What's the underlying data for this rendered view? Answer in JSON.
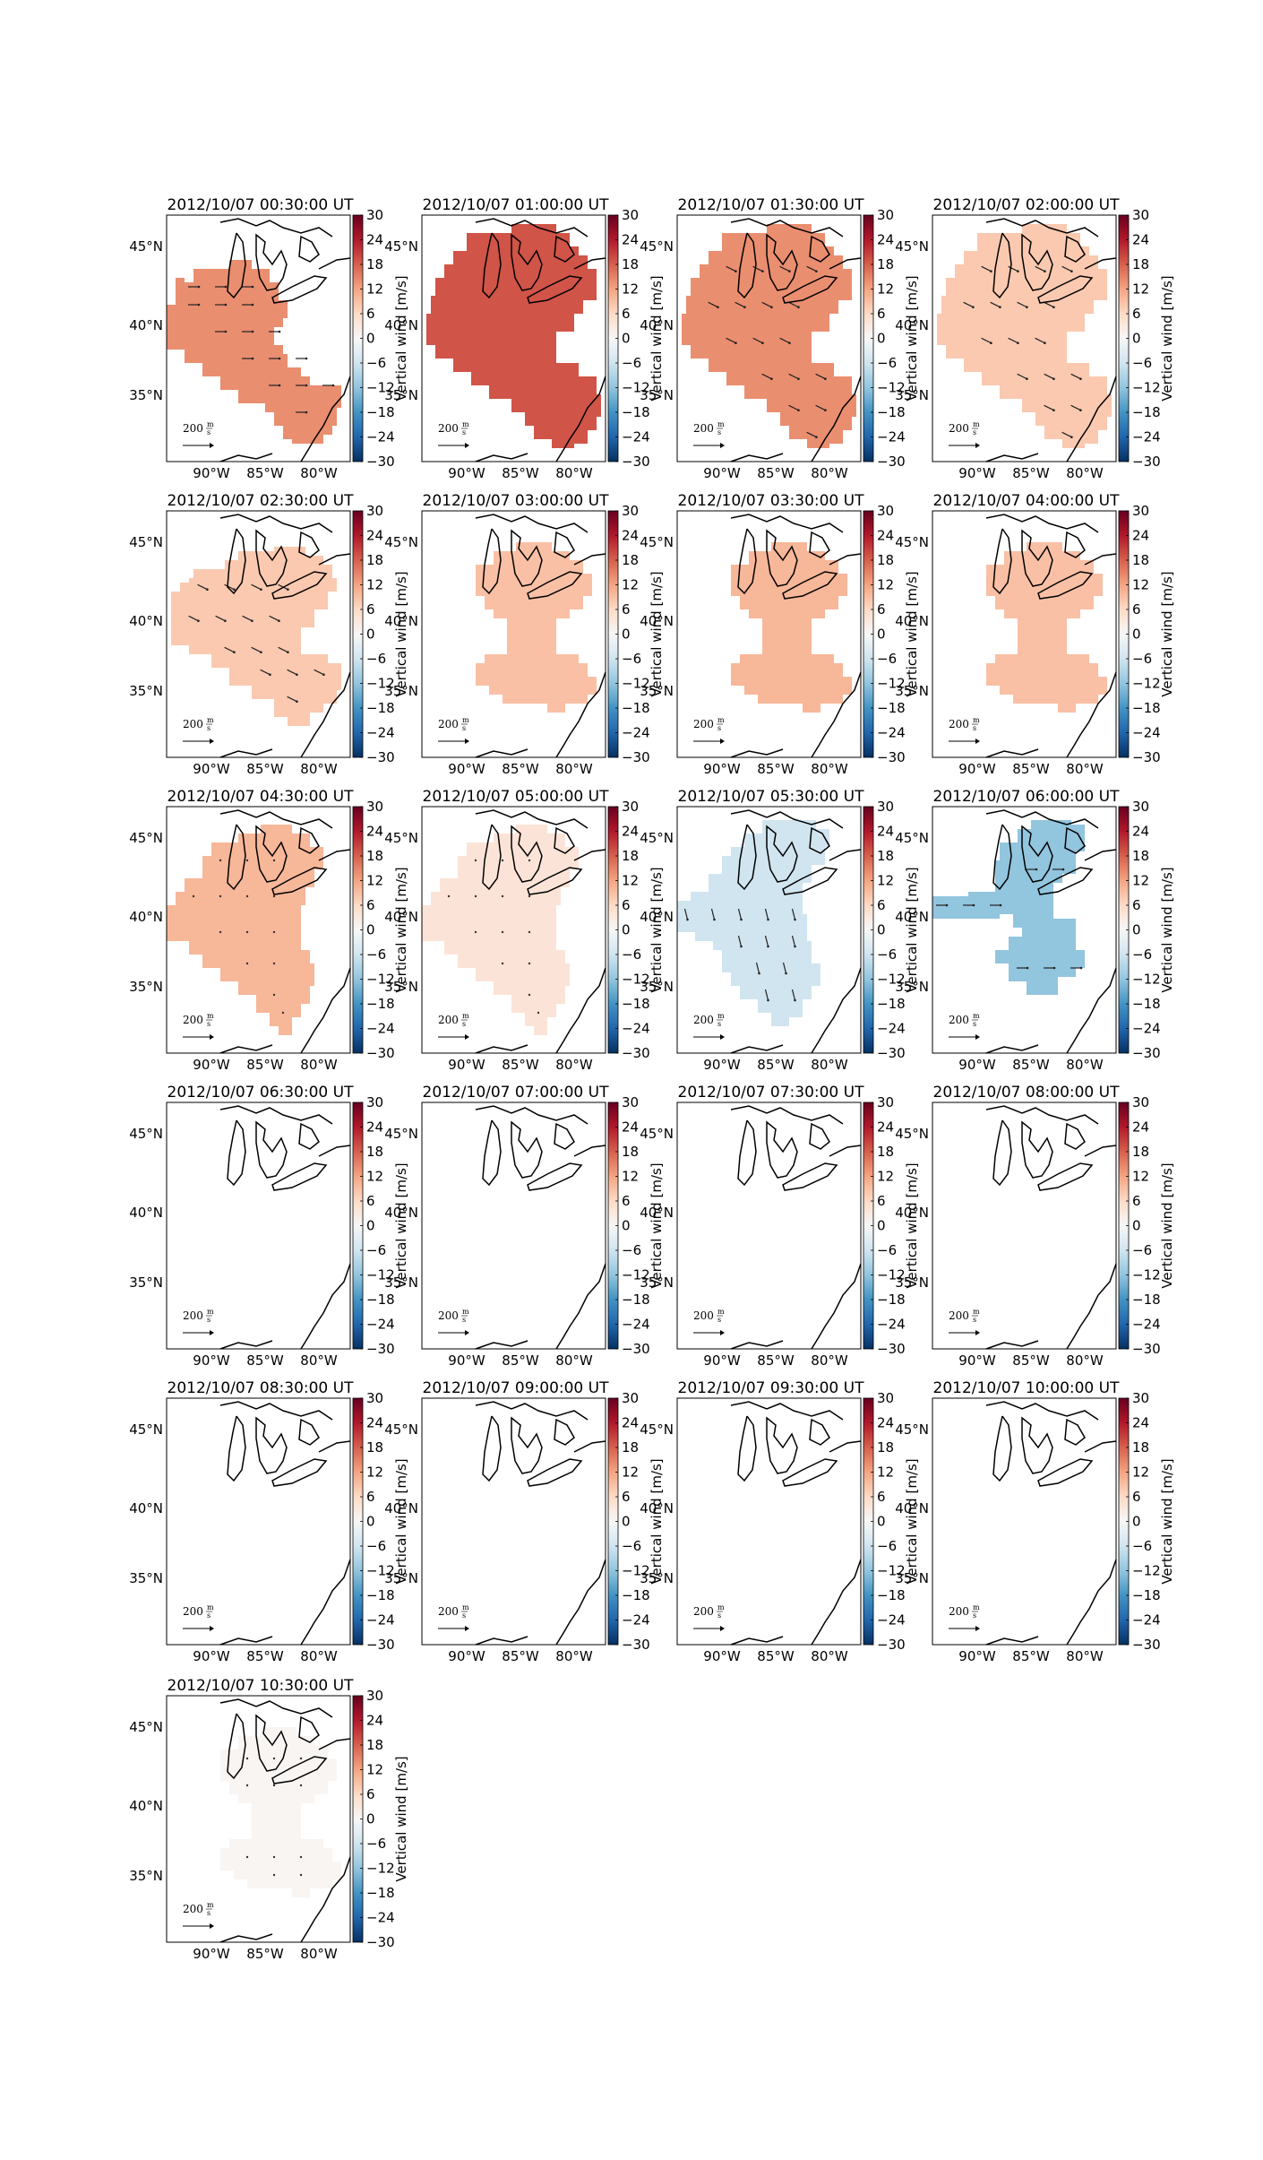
{
  "figure": {
    "colorbar": {
      "label": "Vertical wind [m/s]",
      "ticks": [
        "30",
        "24",
        "18",
        "12",
        "6",
        "0",
        "−6",
        "−12",
        "−18",
        "−24",
        "−30"
      ],
      "vmin": -30,
      "vmax": 30,
      "colormap": [
        "#67001f",
        "#b2182b",
        "#d6604d",
        "#f4a582",
        "#fddbc7",
        "#f7f7f7",
        "#d1e5f0",
        "#92c5de",
        "#4393c3",
        "#2166ac",
        "#053061"
      ]
    },
    "map": {
      "lat_labels": [
        "45°N",
        "40°N",
        "35°N"
      ],
      "lon_labels": [
        "90°W",
        "85°W",
        "80°W"
      ],
      "reference_arrow": {
        "value": "200",
        "unit_num": "m",
        "unit_den": "s"
      }
    }
  },
  "chart_data": [
    {
      "type": "heatmap",
      "title": "2012/10/07 00:30:00 UT",
      "region": "A",
      "vertical_wind_ms": 14,
      "arrows": "east"
    },
    {
      "type": "heatmap",
      "title": "2012/10/07 01:00:00 UT",
      "region": "B",
      "vertical_wind_ms": 19,
      "arrows": "none"
    },
    {
      "type": "heatmap",
      "title": "2012/10/07 01:30:00 UT",
      "region": "B",
      "vertical_wind_ms": 14,
      "arrows": "southeast"
    },
    {
      "type": "heatmap",
      "title": "2012/10/07 02:00:00 UT",
      "region": "B",
      "vertical_wind_ms": 8,
      "arrows": "southeast"
    },
    {
      "type": "heatmap",
      "title": "2012/10/07 02:30:00 UT",
      "region": "C",
      "vertical_wind_ms": 8,
      "arrows": "southeast"
    },
    {
      "type": "heatmap",
      "title": "2012/10/07 03:00:00 UT",
      "region": "D",
      "vertical_wind_ms": 9,
      "arrows": "none"
    },
    {
      "type": "heatmap",
      "title": "2012/10/07 03:30:00 UT",
      "region": "D",
      "vertical_wind_ms": 10,
      "arrows": "none"
    },
    {
      "type": "heatmap",
      "title": "2012/10/07 04:00:00 UT",
      "region": "D",
      "vertical_wind_ms": 9,
      "arrows": "none"
    },
    {
      "type": "heatmap",
      "title": "2012/10/07 04:30:00 UT",
      "region": "E",
      "vertical_wind_ms": 10,
      "arrows": "dots"
    },
    {
      "type": "heatmap",
      "title": "2012/10/07 05:00:00 UT",
      "region": "E",
      "vertical_wind_ms": 4,
      "arrows": "dots"
    },
    {
      "type": "heatmap",
      "title": "2012/10/07 05:30:00 UT",
      "region": "F",
      "vertical_wind_ms": -6,
      "arrows": "south"
    },
    {
      "type": "heatmap",
      "title": "2012/10/07 06:00:00 UT",
      "region": "G",
      "vertical_wind_ms": -12,
      "arrows": "east"
    },
    {
      "type": "heatmap",
      "title": "2012/10/07 06:30:00 UT",
      "region": "none",
      "vertical_wind_ms": null,
      "arrows": "none"
    },
    {
      "type": "heatmap",
      "title": "2012/10/07 07:00:00 UT",
      "region": "none",
      "vertical_wind_ms": null,
      "arrows": "none"
    },
    {
      "type": "heatmap",
      "title": "2012/10/07 07:30:00 UT",
      "region": "none",
      "vertical_wind_ms": null,
      "arrows": "none"
    },
    {
      "type": "heatmap",
      "title": "2012/10/07 08:00:00 UT",
      "region": "none",
      "vertical_wind_ms": null,
      "arrows": "none"
    },
    {
      "type": "heatmap",
      "title": "2012/10/07 08:30:00 UT",
      "region": "none",
      "vertical_wind_ms": null,
      "arrows": "none"
    },
    {
      "type": "heatmap",
      "title": "2012/10/07 09:00:00 UT",
      "region": "none",
      "vertical_wind_ms": null,
      "arrows": "none"
    },
    {
      "type": "heatmap",
      "title": "2012/10/07 09:30:00 UT",
      "region": "none",
      "vertical_wind_ms": null,
      "arrows": "none"
    },
    {
      "type": "heatmap",
      "title": "2012/10/07 10:00:00 UT",
      "region": "none",
      "vertical_wind_ms": null,
      "arrows": "none"
    },
    {
      "type": "heatmap",
      "title": "2012/10/07 10:30:00 UT",
      "region": "D",
      "vertical_wind_ms": 0.5,
      "arrows": "dots"
    }
  ]
}
